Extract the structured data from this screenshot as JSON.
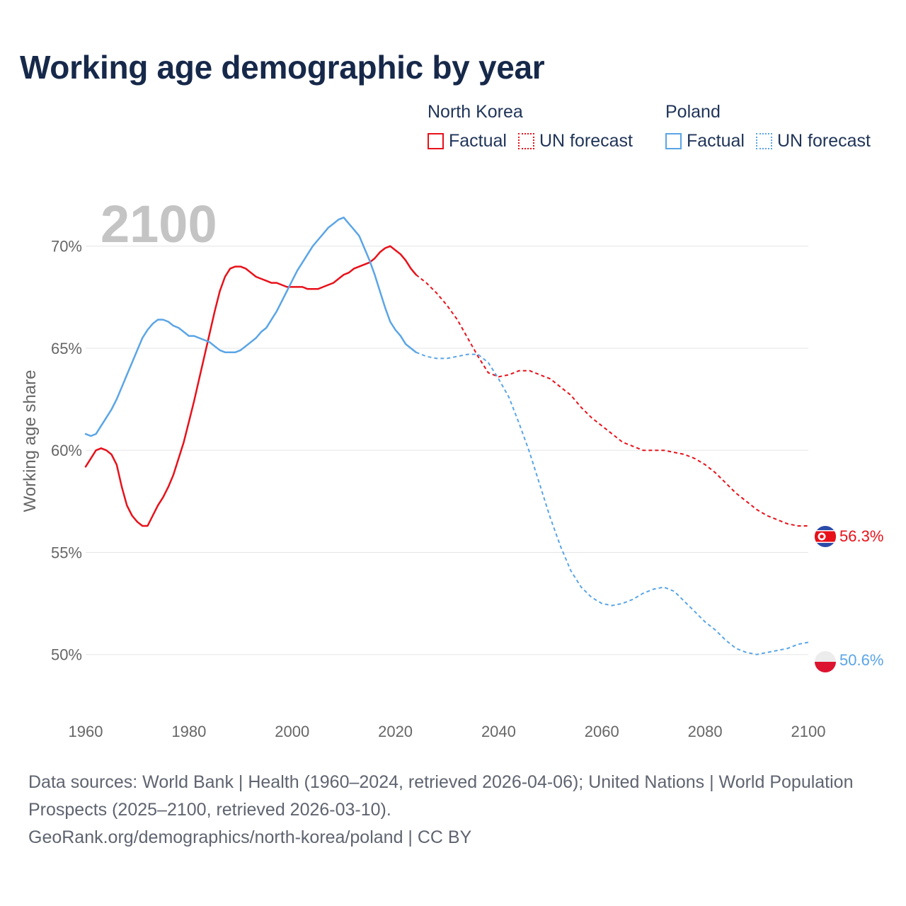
{
  "title": "Working age demographic by year",
  "legend": [
    {
      "country": "North Korea",
      "factual_label": "Factual",
      "forecast_label": "UN forecast",
      "color": "#e8111a"
    },
    {
      "country": "Poland",
      "factual_label": "Factual",
      "forecast_label": "UN forecast",
      "color": "#5aa5e6"
    }
  ],
  "year_watermark": "2100",
  "footer": {
    "sources": "Data sources: World Bank | Health (1960–2024, retrieved 2026-04-06); United Nations | World Population Prospects (2025–2100, retrieved 2026-03-10).",
    "credit": "GeoRank.org/demographics/north-korea/poland | CC BY"
  },
  "chart_data": {
    "type": "line",
    "title": "Working age demographic by year",
    "xlabel": "",
    "ylabel": "Working age share",
    "xlim": [
      1960,
      2100
    ],
    "ylim": [
      48.5,
      72
    ],
    "x_ticks": [
      1960,
      1980,
      2000,
      2020,
      2040,
      2060,
      2080,
      2100
    ],
    "y_ticks": [
      50,
      55,
      60,
      65,
      70
    ],
    "y_tick_labels": [
      "50%",
      "55%",
      "60%",
      "65%",
      "70%"
    ],
    "x_tick_labels": [
      "1960",
      "1980",
      "2000",
      "2020",
      "2040",
      "2060",
      "2080",
      "2100"
    ],
    "grid": true,
    "factual_end_year": 2024,
    "series": [
      {
        "name": "North Korea",
        "color": "#e8111a",
        "end_label": "56.3%",
        "points": [
          [
            1960,
            59.2
          ],
          [
            1961,
            59.6
          ],
          [
            1962,
            60.0
          ],
          [
            1963,
            60.1
          ],
          [
            1964,
            60.0
          ],
          [
            1965,
            59.8
          ],
          [
            1966,
            59.3
          ],
          [
            1967,
            58.2
          ],
          [
            1968,
            57.3
          ],
          [
            1969,
            56.8
          ],
          [
            1970,
            56.5
          ],
          [
            1971,
            56.3
          ],
          [
            1972,
            56.3
          ],
          [
            1973,
            56.8
          ],
          [
            1974,
            57.3
          ],
          [
            1975,
            57.7
          ],
          [
            1976,
            58.2
          ],
          [
            1977,
            58.8
          ],
          [
            1978,
            59.6
          ],
          [
            1979,
            60.4
          ],
          [
            1980,
            61.4
          ],
          [
            1981,
            62.4
          ],
          [
            1982,
            63.5
          ],
          [
            1983,
            64.6
          ],
          [
            1984,
            65.7
          ],
          [
            1985,
            66.8
          ],
          [
            1986,
            67.8
          ],
          [
            1987,
            68.5
          ],
          [
            1988,
            68.9
          ],
          [
            1989,
            69.0
          ],
          [
            1990,
            69.0
          ],
          [
            1991,
            68.9
          ],
          [
            1992,
            68.7
          ],
          [
            1993,
            68.5
          ],
          [
            1994,
            68.4
          ],
          [
            1995,
            68.3
          ],
          [
            1996,
            68.2
          ],
          [
            1997,
            68.2
          ],
          [
            1998,
            68.1
          ],
          [
            1999,
            68.0
          ],
          [
            2000,
            68.0
          ],
          [
            2001,
            68.0
          ],
          [
            2002,
            68.0
          ],
          [
            2003,
            67.9
          ],
          [
            2004,
            67.9
          ],
          [
            2005,
            67.9
          ],
          [
            2006,
            68.0
          ],
          [
            2007,
            68.1
          ],
          [
            2008,
            68.2
          ],
          [
            2009,
            68.4
          ],
          [
            2010,
            68.6
          ],
          [
            2011,
            68.7
          ],
          [
            2012,
            68.9
          ],
          [
            2013,
            69.0
          ],
          [
            2014,
            69.1
          ],
          [
            2015,
            69.2
          ],
          [
            2016,
            69.4
          ],
          [
            2017,
            69.7
          ],
          [
            2018,
            69.9
          ],
          [
            2019,
            70.0
          ],
          [
            2020,
            69.8
          ],
          [
            2021,
            69.6
          ],
          [
            2022,
            69.3
          ],
          [
            2023,
            68.9
          ],
          [
            2024,
            68.6
          ],
          [
            2026,
            68.2
          ],
          [
            2028,
            67.7
          ],
          [
            2030,
            67.1
          ],
          [
            2032,
            66.4
          ],
          [
            2034,
            65.5
          ],
          [
            2036,
            64.6
          ],
          [
            2038,
            63.8
          ],
          [
            2040,
            63.6
          ],
          [
            2042,
            63.7
          ],
          [
            2044,
            63.9
          ],
          [
            2046,
            63.9
          ],
          [
            2048,
            63.7
          ],
          [
            2050,
            63.5
          ],
          [
            2052,
            63.1
          ],
          [
            2054,
            62.7
          ],
          [
            2056,
            62.1
          ],
          [
            2058,
            61.6
          ],
          [
            2060,
            61.2
          ],
          [
            2062,
            60.8
          ],
          [
            2064,
            60.4
          ],
          [
            2066,
            60.2
          ],
          [
            2068,
            60.0
          ],
          [
            2070,
            60.0
          ],
          [
            2072,
            60.0
          ],
          [
            2074,
            59.9
          ],
          [
            2076,
            59.8
          ],
          [
            2078,
            59.6
          ],
          [
            2080,
            59.3
          ],
          [
            2082,
            58.9
          ],
          [
            2084,
            58.4
          ],
          [
            2086,
            57.9
          ],
          [
            2088,
            57.5
          ],
          [
            2090,
            57.1
          ],
          [
            2092,
            56.8
          ],
          [
            2094,
            56.6
          ],
          [
            2096,
            56.4
          ],
          [
            2098,
            56.3
          ],
          [
            2100,
            56.3
          ]
        ]
      },
      {
        "name": "Poland",
        "color": "#5aa5e6",
        "end_label": "50.6%",
        "points": [
          [
            1960,
            60.8
          ],
          [
            1961,
            60.7
          ],
          [
            1962,
            60.8
          ],
          [
            1963,
            61.2
          ],
          [
            1964,
            61.6
          ],
          [
            1965,
            62.0
          ],
          [
            1966,
            62.5
          ],
          [
            1967,
            63.1
          ],
          [
            1968,
            63.7
          ],
          [
            1969,
            64.3
          ],
          [
            1970,
            64.9
          ],
          [
            1971,
            65.5
          ],
          [
            1972,
            65.9
          ],
          [
            1973,
            66.2
          ],
          [
            1974,
            66.4
          ],
          [
            1975,
            66.4
          ],
          [
            1976,
            66.3
          ],
          [
            1977,
            66.1
          ],
          [
            1978,
            66.0
          ],
          [
            1979,
            65.8
          ],
          [
            1980,
            65.6
          ],
          [
            1981,
            65.6
          ],
          [
            1982,
            65.5
          ],
          [
            1983,
            65.4
          ],
          [
            1984,
            65.3
          ],
          [
            1985,
            65.1
          ],
          [
            1986,
            64.9
          ],
          [
            1987,
            64.8
          ],
          [
            1988,
            64.8
          ],
          [
            1989,
            64.8
          ],
          [
            1990,
            64.9
          ],
          [
            1991,
            65.1
          ],
          [
            1992,
            65.3
          ],
          [
            1993,
            65.5
          ],
          [
            1994,
            65.8
          ],
          [
            1995,
            66.0
          ],
          [
            1996,
            66.4
          ],
          [
            1997,
            66.8
          ],
          [
            1998,
            67.3
          ],
          [
            1999,
            67.8
          ],
          [
            2000,
            68.3
          ],
          [
            2001,
            68.8
          ],
          [
            2002,
            69.2
          ],
          [
            2003,
            69.6
          ],
          [
            2004,
            70.0
          ],
          [
            2005,
            70.3
          ],
          [
            2006,
            70.6
          ],
          [
            2007,
            70.9
          ],
          [
            2008,
            71.1
          ],
          [
            2009,
            71.3
          ],
          [
            2010,
            71.4
          ],
          [
            2011,
            71.1
          ],
          [
            2012,
            70.8
          ],
          [
            2013,
            70.5
          ],
          [
            2014,
            69.9
          ],
          [
            2015,
            69.3
          ],
          [
            2016,
            68.6
          ],
          [
            2017,
            67.8
          ],
          [
            2018,
            67.0
          ],
          [
            2019,
            66.3
          ],
          [
            2020,
            65.9
          ],
          [
            2021,
            65.6
          ],
          [
            2022,
            65.2
          ],
          [
            2023,
            65.0
          ],
          [
            2024,
            64.8
          ],
          [
            2026,
            64.6
          ],
          [
            2028,
            64.5
          ],
          [
            2030,
            64.5
          ],
          [
            2032,
            64.6
          ],
          [
            2034,
            64.7
          ],
          [
            2036,
            64.7
          ],
          [
            2038,
            64.3
          ],
          [
            2040,
            63.5
          ],
          [
            2042,
            62.6
          ],
          [
            2044,
            61.3
          ],
          [
            2046,
            59.9
          ],
          [
            2048,
            58.3
          ],
          [
            2050,
            56.7
          ],
          [
            2052,
            55.3
          ],
          [
            2054,
            54.1
          ],
          [
            2056,
            53.3
          ],
          [
            2058,
            52.8
          ],
          [
            2060,
            52.5
          ],
          [
            2062,
            52.4
          ],
          [
            2064,
            52.5
          ],
          [
            2066,
            52.7
          ],
          [
            2068,
            53.0
          ],
          [
            2070,
            53.2
          ],
          [
            2072,
            53.3
          ],
          [
            2074,
            53.1
          ],
          [
            2076,
            52.6
          ],
          [
            2078,
            52.1
          ],
          [
            2080,
            51.6
          ],
          [
            2082,
            51.2
          ],
          [
            2084,
            50.7
          ],
          [
            2086,
            50.3
          ],
          [
            2088,
            50.1
          ],
          [
            2090,
            50.0
          ],
          [
            2092,
            50.1
          ],
          [
            2094,
            50.2
          ],
          [
            2096,
            50.3
          ],
          [
            2098,
            50.5
          ],
          [
            2100,
            50.6
          ]
        ]
      }
    ]
  }
}
